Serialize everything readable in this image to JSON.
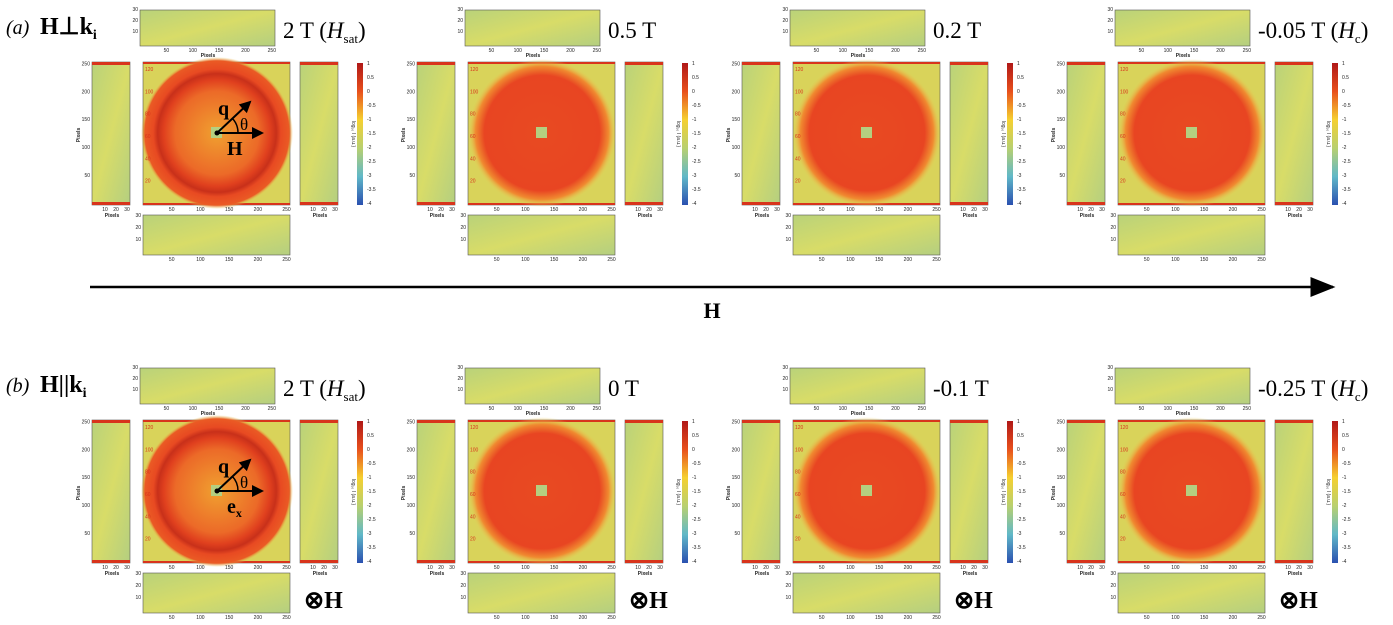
{
  "rows": [
    {
      "label": "(a)",
      "geometry": "H⊥k",
      "geometry_sub": "i",
      "annotation_vector": "H",
      "fields": [
        {
          "main": "2 T (",
          "italic": "H",
          "sub": "sat",
          "close": ")"
        },
        {
          "main": "0.5 T"
        },
        {
          "main": "0.2 T"
        },
        {
          "main": "-0.05 T (",
          "italic": "H",
          "sub": "c",
          "close": ")"
        }
      ]
    },
    {
      "label": "(b)",
      "geometry": "H||k",
      "geometry_sub": "i",
      "annotation_vector": "e",
      "annotation_sub": "x",
      "field_marker": "⊗H",
      "fields": [
        {
          "main": "2 T (",
          "italic": "H",
          "sub": "sat",
          "close": ")"
        },
        {
          "main": "0 T"
        },
        {
          "main": "-0.1 T"
        },
        {
          "main": "-0.25 T (",
          "italic": "H",
          "sub": "c",
          "close": ")"
        }
      ]
    }
  ],
  "annotations": {
    "q": "q",
    "theta": "θ"
  },
  "arrow_label": "H",
  "axes": {
    "pixels": "Pixels",
    "x_ticks": [
      "50",
      "100",
      "150",
      "200",
      "250"
    ],
    "y_ticks": [
      "50",
      "100",
      "150",
      "200",
      "250"
    ],
    "strip_ticks": [
      "10",
      "20",
      "30"
    ],
    "inner_ticks": [
      "20",
      "40",
      "60",
      "80",
      "100",
      "120"
    ],
    "colorbar_ticks": [
      "1",
      "0.5",
      "0",
      "-0.5",
      "-1",
      "-1.5",
      "-2",
      "-2.5",
      "-3",
      "-3.5",
      "-4"
    ],
    "colorbar_label": "log₁₀ I (a.u.)"
  }
}
